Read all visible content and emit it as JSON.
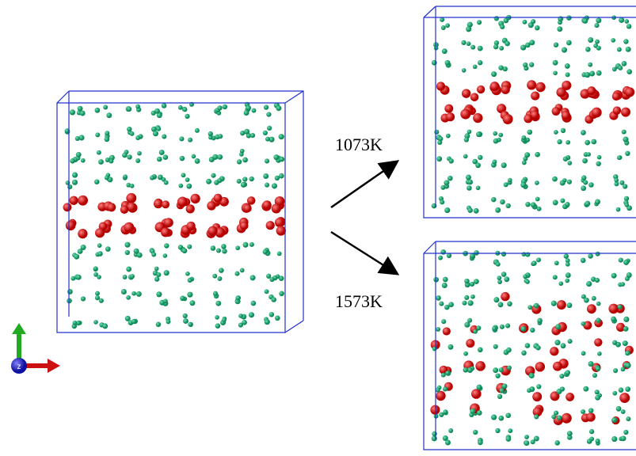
{
  "labels": {
    "upper": "1073K",
    "lower": "1573K"
  },
  "axes": {
    "z": "z"
  }
}
